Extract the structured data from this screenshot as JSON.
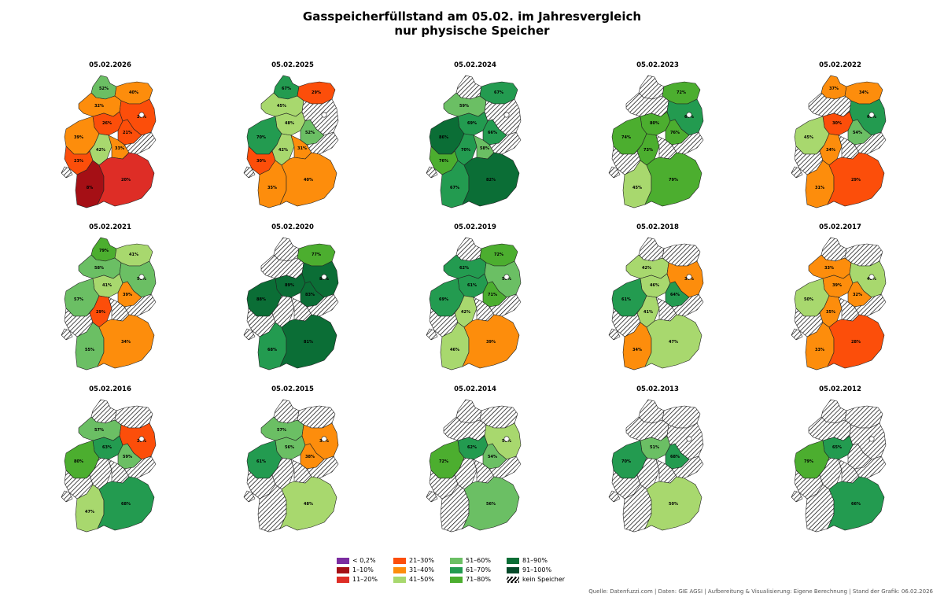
{
  "title_line1": "Gasspeicherfüllstand am 05.02. im Jahresvergleich",
  "title_line2": "nur physische Speicher",
  "footer": "Quelle: Datenfuzzi.com | Daten: GIE AGSI | Aufbereitung & Visualisierung: Eigene Berechnung | Stand der Grafik: 06.02.2026",
  "colors": {
    "lt0_2": "#7b2ca0",
    "c1_10": "#a50f15",
    "c11_20": "#de2d26",
    "c21_30": "#fc4e0a",
    "c31_40": "#fd8d0c",
    "c41_50": "#a8d86e",
    "c51_60": "#6bbf64",
    "c61_70": "#239b50",
    "c71_80": "#4cae2f",
    "c81_90": "#0b6e36",
    "c91_100": "#064a2a",
    "none": "hatch"
  },
  "legend": [
    {
      "label": "< 0,2%",
      "color": "#7b2ca0"
    },
    {
      "label": "1–10%",
      "color": "#a50f15"
    },
    {
      "label": "11–20%",
      "color": "#de2d26"
    },
    {
      "label": "21–30%",
      "color": "#fc4e0a"
    },
    {
      "label": "31–40%",
      "color": "#fd8d0c"
    },
    {
      "label": "41–50%",
      "color": "#a8d86e"
    },
    {
      "label": "51–60%",
      "color": "#6bbf64"
    },
    {
      "label": "61–70%",
      "color": "#239b50"
    },
    {
      "label": "71–80%",
      "color": "#4cae2f"
    },
    {
      "label": "81–90%",
      "color": "#0b6e36"
    },
    {
      "label": "91–100%",
      "color": "#064a2a"
    },
    {
      "label": "kein Speicher",
      "color": "hatch"
    }
  ],
  "panels": [
    {
      "date": "05.02.2026",
      "regions": {
        "SH": "52%",
        "MV": "40%",
        "HH": "",
        "NI": "32%",
        "HB": "",
        "NIN": "26%",
        "BE": "",
        "BB": "27%",
        "ST": "21%",
        "NW": "39%",
        "HE": "42%",
        "TH": "33%",
        "SN": "",
        "RP": "23%",
        "SL": "",
        "BW": "8%",
        "BY": "20%"
      }
    },
    {
      "date": "05.02.2025",
      "regions": {
        "SH": "67%",
        "MV": "29%",
        "HH": "",
        "NI": "45%",
        "HB": "",
        "NIN": "48%",
        "BE": "",
        "BB": "",
        "ST": "52%",
        "NW": "70%",
        "HE": "42%",
        "TH": "31%",
        "SN": "",
        "RP": "30%",
        "SL": "",
        "BW": "35%",
        "BY": "40%"
      }
    },
    {
      "date": "05.02.2024",
      "regions": {
        "SH": "",
        "MV": "67%",
        "HH": "",
        "NI": "59%",
        "HB": "",
        "NIN": "69%",
        "BE": "",
        "BB": "",
        "ST": "66%",
        "NW": "86%",
        "HE": "70%",
        "TH": "58%",
        "SN": "",
        "RP": "76%",
        "SL": "",
        "BW": "67%",
        "BY": "82%"
      }
    },
    {
      "date": "05.02.2023",
      "regions": {
        "SH": "",
        "MV": "72%",
        "HH": "",
        "NI": "",
        "HB": "",
        "NIN": "80%",
        "BE": "",
        "BB": "69%",
        "ST": "76%",
        "NW": "74%",
        "HE": "73%",
        "TH": "",
        "SN": "",
        "RP": "",
        "SL": "",
        "BW": "45%",
        "BY": "79%"
      }
    },
    {
      "date": "05.02.2022",
      "regions": {
        "SH": "37%",
        "MV": "34%",
        "HH": "",
        "NI": "",
        "HB": "",
        "NIN": "30%",
        "BE": "",
        "BB": "65%",
        "ST": "54%",
        "NW": "45%",
        "HE": "34%",
        "TH": "",
        "SN": "",
        "RP": "",
        "SL": "",
        "BW": "31%",
        "BY": "29%"
      }
    },
    {
      "date": "05.02.2021",
      "regions": {
        "SH": "79%",
        "MV": "41%",
        "HH": "",
        "NI": "58%",
        "HB": "",
        "NIN": "41%",
        "BE": "",
        "BB": "51%",
        "ST": "39%",
        "NW": "57%",
        "HE": "29%",
        "TH": "",
        "SN": "",
        "RP": "",
        "SL": "",
        "BW": "55%",
        "BY": "34%"
      }
    },
    {
      "date": "05.02.2020",
      "regions": {
        "SH": "",
        "MV": "77%",
        "HH": "",
        "NI": "",
        "HB": "",
        "NIN": "89%",
        "BE": "",
        "BB": "86%",
        "ST": "83%",
        "NW": "88%",
        "HE": "",
        "TH": "",
        "SN": "",
        "RP": "",
        "SL": "",
        "BW": "68%",
        "BY": "81%"
      }
    },
    {
      "date": "05.02.2019",
      "regions": {
        "SH": "",
        "MV": "72%",
        "HH": "",
        "NI": "62%",
        "HB": "",
        "NIN": "61%",
        "BE": "",
        "BB": "53%",
        "ST": "71%",
        "NW": "69%",
        "HE": "42%",
        "TH": "",
        "SN": "",
        "RP": "",
        "SL": "",
        "BW": "46%",
        "BY": "39%"
      }
    },
    {
      "date": "05.02.2018",
      "regions": {
        "SH": "",
        "MV": "",
        "HH": "",
        "NI": "42%",
        "HB": "",
        "NIN": "46%",
        "BE": "",
        "BB": "36%",
        "ST": "64%",
        "NW": "61%",
        "HE": "41%",
        "TH": "",
        "SN": "",
        "RP": "",
        "SL": "",
        "BW": "34%",
        "BY": "47%"
      }
    },
    {
      "date": "05.02.2017",
      "regions": {
        "SH": "",
        "MV": "",
        "HH": "",
        "NI": "33%",
        "HB": "",
        "NIN": "39%",
        "BE": "",
        "BB": "48%",
        "ST": "32%",
        "NW": "50%",
        "HE": "35%",
        "TH": "",
        "SN": "",
        "RP": "",
        "SL": "",
        "BW": "33%",
        "BY": "28%"
      }
    },
    {
      "date": "05.02.2016",
      "regions": {
        "SH": "",
        "MV": "",
        "HH": "",
        "NI": "57%",
        "HB": "",
        "NIN": "63%",
        "BE": "",
        "BB": "25%",
        "ST": "59%",
        "NW": "80%",
        "HE": "",
        "TH": "",
        "SN": "",
        "RP": "",
        "SL": "",
        "BW": "47%",
        "BY": "68%"
      }
    },
    {
      "date": "05.02.2015",
      "regions": {
        "SH": "",
        "MV": "",
        "HH": "",
        "NI": "57%",
        "HB": "",
        "NIN": "56%",
        "BE": "",
        "BB": "37%",
        "ST": "38%",
        "NW": "61%",
        "HE": "",
        "TH": "",
        "SN": "",
        "RP": "",
        "SL": "",
        "BW": "",
        "BY": "48%"
      }
    },
    {
      "date": "05.02.2014",
      "regions": {
        "SH": "",
        "MV": "",
        "HH": "",
        "NI": "",
        "HB": "",
        "NIN": "62%",
        "BE": "",
        "BB": "50%",
        "ST": "54%",
        "NW": "72%",
        "HE": "",
        "TH": "",
        "SN": "",
        "RP": "",
        "SL": "",
        "BW": "",
        "BY": "56%"
      }
    },
    {
      "date": "05.02.2013",
      "regions": {
        "SH": "",
        "MV": "",
        "HH": "",
        "NI": "",
        "HB": "",
        "NIN": "51%",
        "BE": "",
        "BB": "",
        "ST": "68%",
        "NW": "70%",
        "HE": "",
        "TH": "",
        "SN": "",
        "RP": "",
        "SL": "",
        "BW": "",
        "BY": "50%"
      }
    },
    {
      "date": "05.02.2012",
      "regions": {
        "SH": "",
        "MV": "",
        "HH": "",
        "NI": "",
        "HB": "",
        "NIN": "65%",
        "BE": "",
        "BB": "",
        "ST": "",
        "NW": "79%",
        "HE": "",
        "TH": "",
        "SN": "",
        "RP": "",
        "SL": "",
        "BW": "",
        "BY": "66%"
      }
    }
  ]
}
